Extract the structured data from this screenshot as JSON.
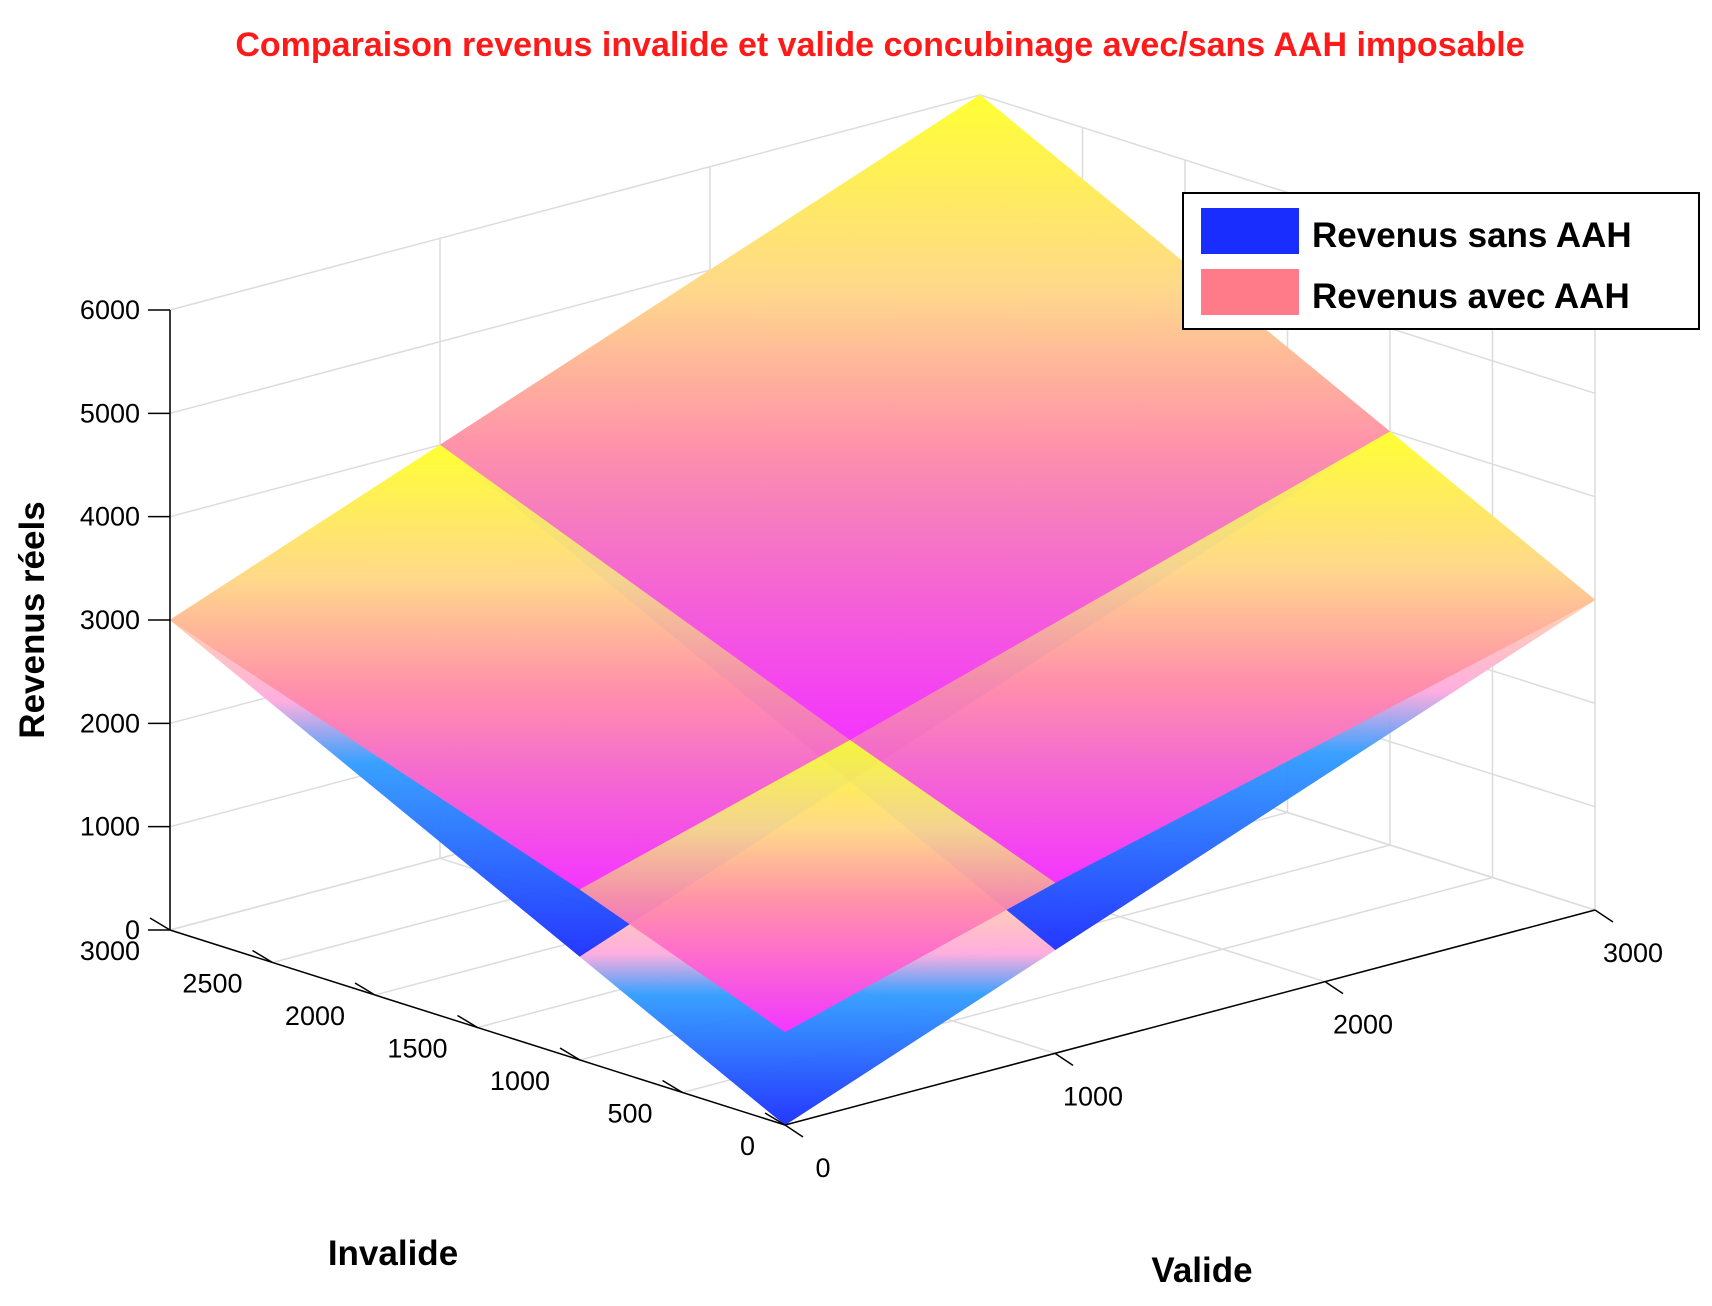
{
  "chart_data": {
    "type": "surface3d",
    "title": "Comparaison revenus invalide et valide concubinage avec/sans AAH imposable",
    "xlabel": "Valide",
    "ylabel": "Invalide",
    "zlabel": "Revenus réels",
    "xlim": [
      0,
      3000
    ],
    "ylim": [
      0,
      3000
    ],
    "zlim": [
      0,
      6000
    ],
    "x_ticks": [
      "0",
      "1000",
      "2000",
      "3000"
    ],
    "y_ticks": [
      "0",
      "500",
      "1000",
      "1500",
      "2000",
      "2500",
      "3000"
    ],
    "z_ticks": [
      "0",
      "1000",
      "2000",
      "3000",
      "4000",
      "5000",
      "6000"
    ],
    "grid": true,
    "legend_position": "top-right",
    "series": [
      {
        "name": "Revenus sans AAH",
        "color": "#1a2dff",
        "x": [
          0,
          1000,
          3000
        ],
        "y": [
          0,
          1000,
          3000
        ],
        "z": [
          [
            0,
            1000,
            3000
          ],
          [
            1000,
            2000,
            4000
          ],
          [
            3000,
            4000,
            6000
          ]
        ]
      },
      {
        "name": "Revenus avec AAH",
        "color": "#ff7b8a",
        "x": [
          0,
          1000,
          3000
        ],
        "y": [
          0,
          1000,
          3000
        ],
        "z": [
          [
            900,
            1650,
            3000
          ],
          [
            1650,
            2400,
            4000
          ],
          [
            3000,
            4000,
            6000
          ]
        ]
      }
    ]
  }
}
